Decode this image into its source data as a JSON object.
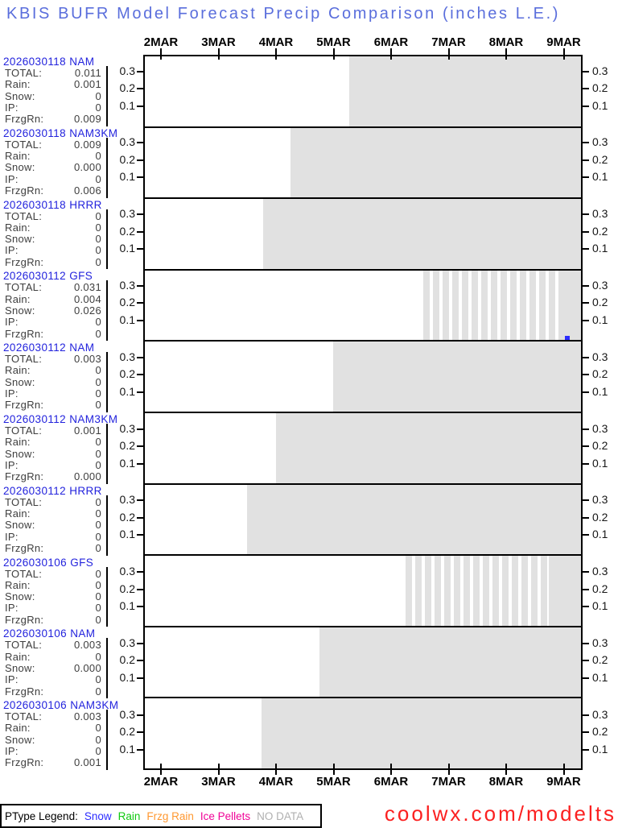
{
  "title": "KBIS BUFR Model Forecast Precip Comparison (inches L.E.)",
  "axis": {
    "month_labels": [
      "2MAR",
      "3MAR",
      "4MAR",
      "5MAR",
      "6MAR",
      "7MAR",
      "8MAR",
      "9MAR"
    ],
    "y_tick_labels": [
      "0.3",
      "0.2",
      "0.1"
    ]
  },
  "stat_row_labels": [
    "TOTAL:",
    "Rain:",
    "Snow:",
    "IP:",
    "FrzgRn:"
  ],
  "panels": [
    {
      "model": "2026030118 NAM",
      "values": [
        "0.011",
        "0.001",
        "0",
        "0",
        "0.009"
      ],
      "no_data": {
        "solid_from": 254
      }
    },
    {
      "model": "2026030118 NAM3KM",
      "values": [
        "0.009",
        "0",
        "0.000",
        "0",
        "0.006"
      ],
      "no_data": {
        "solid_from": 181
      }
    },
    {
      "model": "2026030118 HRRR",
      "values": [
        "0",
        "0",
        "0",
        "0",
        "0"
      ],
      "no_data": {
        "solid_from": 147
      }
    },
    {
      "model": "2026030112 GFS",
      "values": [
        "0.031",
        "0.004",
        "0.026",
        "0",
        "0"
      ],
      "no_data": {
        "stripe_from": 346,
        "stripe_to": 520,
        "solid_from": 520
      },
      "snow_bar": {
        "x": 522,
        "w": 6,
        "h": 5
      }
    },
    {
      "model": "2026030112 NAM",
      "values": [
        "0.003",
        "0",
        "0",
        "0",
        "0"
      ],
      "no_data": {
        "solid_from": 234
      }
    },
    {
      "model": "2026030112 NAM3KM",
      "values": [
        "0.001",
        "0",
        "0",
        "0",
        "0.000"
      ],
      "no_data": {
        "solid_from": 163
      }
    },
    {
      "model": "2026030112 HRRR",
      "values": [
        "0",
        "0",
        "0",
        "0",
        "0"
      ],
      "no_data": {
        "solid_from": 127
      }
    },
    {
      "model": "2026030106 GFS",
      "values": [
        "0",
        "0",
        "0",
        "0",
        "0"
      ],
      "no_data": {
        "stripe_from": 324,
        "stripe_to": 502,
        "solid_from": 502
      }
    },
    {
      "model": "2026030106 NAM",
      "values": [
        "0.003",
        "0",
        "0.000",
        "0",
        "0"
      ],
      "no_data": {
        "solid_from": 217
      }
    },
    {
      "model": "2026030106 NAM3KM",
      "values": [
        "0.003",
        "0",
        "0",
        "0",
        "0.001"
      ],
      "no_data": {
        "solid_from": 145
      }
    }
  ],
  "legend": {
    "label": "PType Legend:",
    "items": [
      {
        "text": "Snow",
        "color": "#2d2dff"
      },
      {
        "text": "Rain",
        "color": "#10c910"
      },
      {
        "text": "Frzg Rain",
        "color": "#ff9830"
      },
      {
        "text": "Ice Pellets",
        "color": "#f00598"
      },
      {
        "text": "NO DATA",
        "color": "#b0b0b0"
      }
    ]
  },
  "watermark": "coolwx.com/modelts",
  "colors": {
    "title": "#5a6edc",
    "model_label": "#2323dd",
    "no_data_fill": "#e1e1e1",
    "snow": "#2d2dff",
    "watermark": "#fb2020"
  },
  "chart_data": {
    "type": "area",
    "title": "KBIS BUFR Model Forecast Precip Comparison (inches L.E.)",
    "x": {
      "tick_labels": [
        "2MAR",
        "3MAR",
        "4MAR",
        "5MAR",
        "6MAR",
        "7MAR",
        "8MAR",
        "9MAR"
      ],
      "range_days": [
        "1MAR 18Z",
        "9MAR 07Z"
      ]
    },
    "y": {
      "tick_labels": [
        0.1,
        0.2,
        0.3
      ],
      "ylim": [
        0,
        0.42
      ],
      "units": "inches liquid equivalent"
    },
    "grid": false,
    "legend": {
      "position": "bottom",
      "entries": [
        "Snow",
        "Rain",
        "Frzg Rain",
        "Ice Pellets",
        "NO DATA"
      ]
    },
    "panels": [
      {
        "model_run": "2026030118 NAM",
        "totals": {
          "TOTAL": 0.011,
          "Rain": 0.001,
          "Snow": 0,
          "IP": 0,
          "FrzgRn": 0.009
        },
        "visible_precip_series": "none (all values ~0 on plot)",
        "no_data_after": "5MAR 06Z"
      },
      {
        "model_run": "2026030118 NAM3KM",
        "totals": {
          "TOTAL": 0.009,
          "Rain": 0,
          "Snow": 0.0,
          "IP": 0,
          "FrzgRn": 0.006
        },
        "visible_precip_series": "none",
        "no_data_after": "4MAR 06Z"
      },
      {
        "model_run": "2026030118 HRRR",
        "totals": {
          "TOTAL": 0,
          "Rain": 0,
          "Snow": 0,
          "IP": 0,
          "FrzgRn": 0
        },
        "visible_precip_series": "none",
        "no_data_after": "3MAR 18Z"
      },
      {
        "model_run": "2026030112 GFS",
        "totals": {
          "TOTAL": 0.031,
          "Rain": 0.004,
          "Snow": 0.026,
          "IP": 0,
          "FrzgRn": 0
        },
        "visible_precip_series": "one small blue Snow bar ~0.02 in near 9MAR",
        "striped_low_resolution_window": [
          "6MAR 12Z",
          "9MAR 00Z"
        ],
        "no_data_after": "9MAR 00Z"
      },
      {
        "model_run": "2026030112 NAM",
        "totals": {
          "TOTAL": 0.003,
          "Rain": 0,
          "Snow": 0,
          "IP": 0,
          "FrzgRn": 0
        },
        "visible_precip_series": "none",
        "no_data_after": "5MAR 00Z"
      },
      {
        "model_run": "2026030112 NAM3KM",
        "totals": {
          "TOTAL": 0.001,
          "Rain": 0,
          "Snow": 0,
          "IP": 0,
          "FrzgRn": 0.0
        },
        "visible_precip_series": "none",
        "no_data_after": "4MAR 00Z"
      },
      {
        "model_run": "2026030112 HRRR",
        "totals": {
          "TOTAL": 0,
          "Rain": 0,
          "Snow": 0,
          "IP": 0,
          "FrzgRn": 0
        },
        "visible_precip_series": "none",
        "no_data_after": "3MAR 12Z"
      },
      {
        "model_run": "2026030106 GFS",
        "totals": {
          "TOTAL": 0,
          "Rain": 0,
          "Snow": 0,
          "IP": 0,
          "FrzgRn": 0
        },
        "visible_precip_series": "none",
        "striped_low_resolution_window": [
          "6MAR 06Z",
          "8MAR 18Z"
        ],
        "no_data_after": "8MAR 18Z"
      },
      {
        "model_run": "2026030106 NAM",
        "totals": {
          "TOTAL": 0.003,
          "Rain": 0,
          "Snow": 0.0,
          "IP": 0,
          "FrzgRn": 0
        },
        "visible_precip_series": "none",
        "no_data_after": "4MAR 18Z"
      },
      {
        "model_run": "2026030106 NAM3KM",
        "totals": {
          "TOTAL": 0.003,
          "Rain": 0,
          "Snow": 0,
          "IP": 0,
          "FrzgRn": 0.001
        },
        "visible_precip_series": "none",
        "no_data_after": "3MAR 18Z"
      }
    ]
  }
}
